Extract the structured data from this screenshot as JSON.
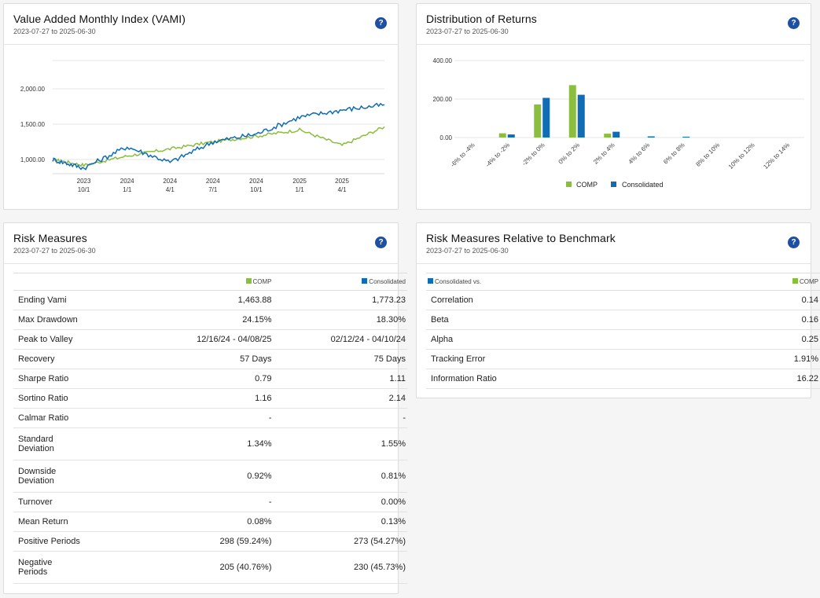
{
  "colors": {
    "comp": "#8bbd3f",
    "consolidated": "#0f6cb5",
    "help": "#1d4fa3"
  },
  "help_label": "?",
  "vami": {
    "title": "Value Added Monthly Index (VAMI)",
    "subtitle": "2023-07-27 to 2025-06-30",
    "y_ticks": [
      "2,000.00",
      "1,500.00",
      "1,000.00"
    ],
    "x_ticks": [
      {
        "year": "2023",
        "date": "10/1"
      },
      {
        "year": "2024",
        "date": "1/1"
      },
      {
        "year": "2024",
        "date": "4/1"
      },
      {
        "year": "2024",
        "date": "7/1"
      },
      {
        "year": "2024",
        "date": "10/1"
      },
      {
        "year": "2025",
        "date": "1/1"
      },
      {
        "year": "2025",
        "date": "4/1"
      }
    ]
  },
  "distribution": {
    "title": "Distribution of Returns",
    "subtitle": "2023-07-27 to 2025-06-30",
    "legend": {
      "comp": "COMP",
      "consolidated": "Consolidated"
    }
  },
  "chart_data": [
    {
      "type": "line",
      "title": "Value Added Monthly Index (VAMI)",
      "x": [
        "2023-07-27",
        "2023-10-01",
        "2024-01-01",
        "2024-04-01",
        "2024-07-01",
        "2024-10-01",
        "2025-01-01",
        "2025-04-01",
        "2025-06-30"
      ],
      "ylim": [
        800,
        2400
      ],
      "series": [
        {
          "name": "COMP",
          "values": [
            1000,
            920,
            1050,
            1150,
            1250,
            1330,
            1420,
            1200,
            1464
          ]
        },
        {
          "name": "Consolidated",
          "values": [
            1000,
            880,
            1180,
            960,
            1250,
            1360,
            1600,
            1700,
            1773
          ]
        }
      ]
    },
    {
      "type": "bar",
      "title": "Distribution of Returns",
      "categories": [
        "-6% to -4%",
        "-4% to -2%",
        "-2% to 0%",
        "0% to 2%",
        "2% to 4%",
        "4% to 6%",
        "6% to 8%",
        "8% to 10%",
        "10% to 12%",
        "12% to 14%"
      ],
      "ylim": [
        0,
        400
      ],
      "y_ticks": [
        "400.00",
        "200.00",
        "0.00"
      ],
      "series": [
        {
          "name": "COMP",
          "values": [
            0,
            22,
            172,
            272,
            20,
            0,
            0,
            0,
            0,
            0
          ]
        },
        {
          "name": "Consolidated",
          "values": [
            0,
            16,
            206,
            222,
            30,
            6,
            4,
            0,
            0,
            0
          ]
        }
      ]
    }
  ],
  "risk": {
    "title": "Risk Measures",
    "subtitle": "2023-07-27 to 2025-06-30",
    "col_comp": "COMP",
    "col_cons": "Consolidated",
    "rows": [
      {
        "label": "Ending Vami",
        "comp": "1,463.88",
        "cons": "1,773.23"
      },
      {
        "label": "Max Drawdown",
        "comp": "24.15%",
        "cons": "18.30%"
      },
      {
        "label": "Peak to Valley",
        "comp": "12/16/24 - 04/08/25",
        "cons": "02/12/24 - 04/10/24"
      },
      {
        "label": "Recovery",
        "comp": "57 Days",
        "cons": "75 Days"
      },
      {
        "label": "Sharpe Ratio",
        "comp": "0.79",
        "cons": "1.11"
      },
      {
        "label": "Sortino Ratio",
        "comp": "1.16",
        "cons": "2.14"
      },
      {
        "label": "Calmar Ratio",
        "comp": "-",
        "cons": "-"
      },
      {
        "label": "Standard Deviation",
        "label1": "Standard",
        "label2": "Deviation",
        "comp": "1.34%",
        "cons": "1.55%"
      },
      {
        "label": "Downside Deviation",
        "label1": "Downside",
        "label2": "Deviation",
        "comp": "0.92%",
        "cons": "0.81%"
      },
      {
        "label": "Turnover",
        "comp": "-",
        "cons": "0.00%"
      },
      {
        "label": "Mean Return",
        "comp": "0.08%",
        "cons": "0.13%"
      },
      {
        "label": "Positive Periods",
        "comp": "298 (59.24%)",
        "cons": "273 (54.27%)"
      },
      {
        "label": "Negative Periods",
        "label1": "Negative",
        "label2": "Periods",
        "comp": "205 (40.76%)",
        "cons": "230 (45.73%)"
      }
    ]
  },
  "relative": {
    "title": "Risk Measures Relative to Benchmark",
    "subtitle": "2023-07-27 to 2025-06-30",
    "col_left": "Consolidated vs.",
    "col_right": "COMP",
    "rows": [
      {
        "label": "Correlation",
        "value": "0.14"
      },
      {
        "label": "Beta",
        "value": "0.16"
      },
      {
        "label": "Alpha",
        "value": "0.25"
      },
      {
        "label": "Tracking Error",
        "value": "1.91%"
      },
      {
        "label": "Information Ratio",
        "value": "16.22"
      }
    ]
  }
}
